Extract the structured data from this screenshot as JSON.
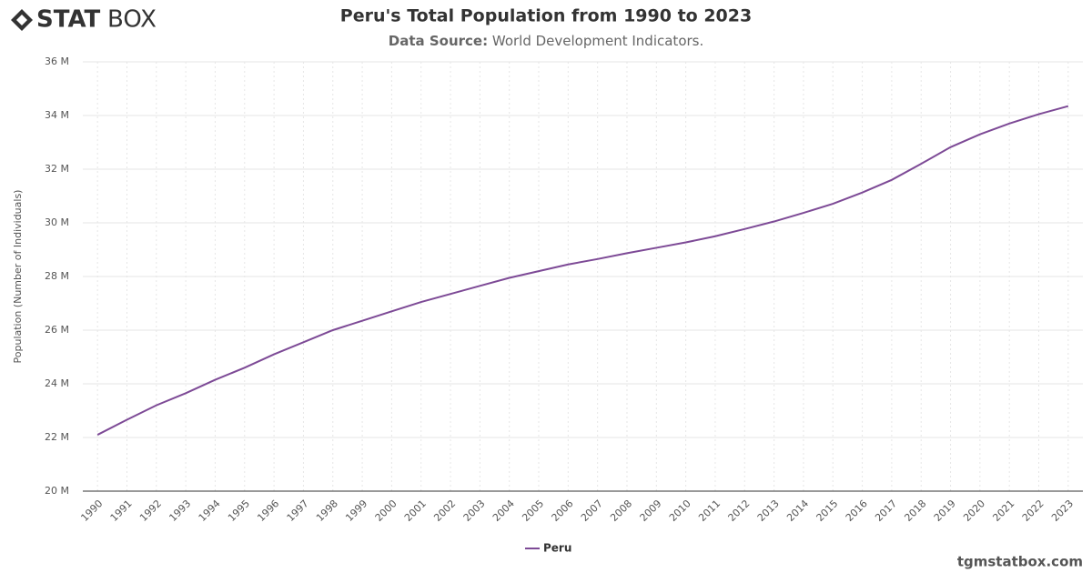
{
  "brand": {
    "bold": "STAT",
    "light": "BOX"
  },
  "footer": "tgmstatbox.com",
  "chart_data": {
    "type": "line",
    "title": "Peru's Total Population from 1990 to 2023",
    "source_label": "Data Source:",
    "source": "World Development Indicators.",
    "y_label": "Population (Number of Individuals)",
    "categories": [
      "1990",
      "1991",
      "1992",
      "1993",
      "1994",
      "1995",
      "1996",
      "1997",
      "1998",
      "1999",
      "2000",
      "2001",
      "2002",
      "2003",
      "2004",
      "2005",
      "2006",
      "2007",
      "2008",
      "2009",
      "2010",
      "2011",
      "2012",
      "2013",
      "2014",
      "2015",
      "2016",
      "2017",
      "2018",
      "2019",
      "2020",
      "2021",
      "2022",
      "2023"
    ],
    "series": [
      {
        "name": "Peru",
        "color": "#7d4a96",
        "values": [
          22.1,
          22.66,
          23.2,
          23.65,
          24.15,
          24.6,
          25.1,
          25.55,
          26.0,
          26.35,
          26.7,
          27.05,
          27.35,
          27.65,
          27.95,
          28.2,
          28.45,
          28.65,
          28.87,
          29.07,
          29.27,
          29.5,
          29.77,
          30.05,
          30.37,
          30.71,
          31.13,
          31.6,
          32.2,
          32.82,
          33.3,
          33.7,
          34.05,
          34.35
        ]
      }
    ],
    "ylim": [
      20,
      36
    ],
    "yticks": [
      {
        "value": 20,
        "label": "20 M"
      },
      {
        "value": 22,
        "label": "22 M"
      },
      {
        "value": 24,
        "label": "24 M"
      },
      {
        "value": 26,
        "label": "26 M"
      },
      {
        "value": 28,
        "label": "28 M"
      },
      {
        "value": 30,
        "label": "30 M"
      },
      {
        "value": 32,
        "label": "32 M"
      },
      {
        "value": 34,
        "label": "34 M"
      },
      {
        "value": 36,
        "label": "36 M"
      }
    ],
    "grid": true
  }
}
